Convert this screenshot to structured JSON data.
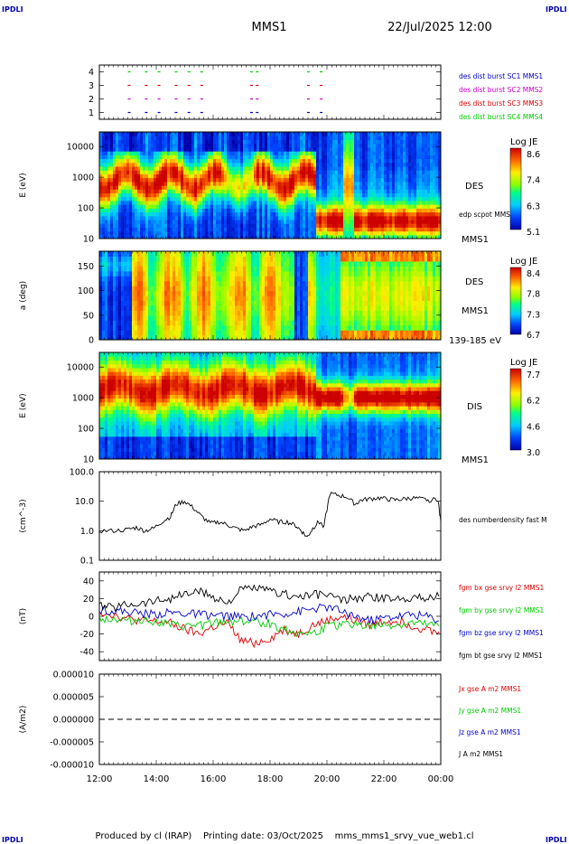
{
  "corner_left_top": "IPDLI",
  "corner_right_top": "IPDLI",
  "corner_left_bottom": "IPDLI",
  "corner_right_bottom": "IPDLI",
  "title": "MMS1",
  "date_label": "22/Jul/2025 12:00",
  "footer": "Produced by cl (IRAP)    Printing date: 03/Oct/2025    mms_mms1_srvy_vue_web1.cl",
  "time_axis": {
    "ticks": [
      "12:00",
      "14:00",
      "16:00",
      "18:00",
      "20:00",
      "22:00",
      "00:00"
    ],
    "start_hour": 12,
    "end_hour": 24
  },
  "colors": {
    "blue": "#0000cc",
    "magenta": "#cc00cc",
    "red": "#dd0000",
    "green": "#00cc00",
    "black": "#000000"
  },
  "chart_data": [
    {
      "type": "scatter",
      "panel": "burst",
      "y_ticks": [
        "1",
        "2",
        "3",
        "4"
      ],
      "ylim": [
        0.5,
        4.5
      ],
      "legend": [
        {
          "name": "des dist burst SC1 MMS1",
          "color": "#0000cc"
        },
        {
          "name": "des dist burst SC2 MMS2",
          "color": "#cc00cc"
        },
        {
          "name": "des dist burst SC3 MMS3",
          "color": "#dd0000"
        },
        {
          "name": "des dist burst SC4 MMS4",
          "color": "#00cc00"
        }
      ],
      "intervals_hours": [
        13.0,
        13.6,
        14.05,
        14.65,
        15.1,
        15.55,
        17.3,
        17.5,
        19.3,
        19.75
      ]
    },
    {
      "type": "heatmap",
      "panel": "des_energy",
      "ylabel": "E (eV)",
      "y_ticks": [
        "10",
        "100",
        "1000",
        "10000"
      ],
      "ylim_log": [
        10,
        30000
      ],
      "side_label": "DES",
      "sub_label": "edp scpot MMS1",
      "bottom_label": "MMS1",
      "colorbar": {
        "title": "Log JE",
        "ticks": [
          "8.6",
          "7.4",
          "6.3",
          "5.1"
        ]
      }
    },
    {
      "type": "heatmap",
      "panel": "des_pitch",
      "ylabel": "a (deg)",
      "y_ticks": [
        "0",
        "50",
        "100",
        "150"
      ],
      "ylim": [
        0,
        180
      ],
      "side_label": "DES",
      "bottom_label": "MMS1",
      "range_label": "139-185 eV",
      "colorbar": {
        "title": "Log JE",
        "ticks": [
          "8.4",
          "7.8",
          "7.3",
          "6.7"
        ]
      }
    },
    {
      "type": "heatmap",
      "panel": "dis_energy",
      "ylabel": "E (eV)",
      "y_ticks": [
        "10",
        "100",
        "1000",
        "10000"
      ],
      "ylim_log": [
        10,
        30000
      ],
      "side_label": "DIS",
      "bottom_label": "MMS1",
      "colorbar": {
        "title": "Log JE",
        "ticks": [
          "7.7",
          "6.2",
          "4.6",
          "3.0"
        ]
      }
    },
    {
      "type": "line",
      "panel": "density",
      "ylabel": "(cm^-3)",
      "y_ticks": [
        "0.1",
        "1.0",
        "10.0",
        "100.0"
      ],
      "ylim_log": [
        0.1,
        100
      ],
      "legend": [
        {
          "name": "des numberdensity fast M",
          "color": "#000000"
        }
      ],
      "x_hours": [
        12.0,
        12.5,
        13.0,
        13.3,
        13.6,
        13.9,
        14.2,
        14.5,
        14.7,
        15.0,
        15.3,
        15.6,
        15.9,
        16.2,
        16.5,
        16.8,
        17.1,
        17.4,
        17.7,
        18.0,
        18.3,
        18.6,
        18.9,
        19.1,
        19.3,
        19.5,
        19.7,
        19.9,
        20.1,
        20.4,
        20.7,
        21.0,
        21.2,
        21.5,
        21.8,
        22.1,
        22.4,
        22.7,
        23.0,
        23.3,
        23.6,
        23.9,
        24.0
      ],
      "values": [
        1.0,
        1.0,
        1.1,
        1.3,
        1.0,
        1.2,
        2.0,
        3.0,
        8.0,
        10.0,
        6.0,
        3.0,
        1.8,
        2.0,
        1.6,
        1.2,
        1.0,
        1.4,
        1.6,
        2.5,
        2.0,
        2.0,
        1.5,
        1.0,
        0.6,
        1.2,
        2.0,
        1.5,
        18.0,
        16.0,
        14.0,
        8.0,
        11.0,
        12.0,
        13.0,
        12.0,
        11.0,
        12.0,
        13.0,
        12.0,
        11.0,
        12.0,
        2.0
      ]
    },
    {
      "type": "line",
      "panel": "fgm",
      "ylabel": "(nT)",
      "y_ticks": [
        "-40",
        "-20",
        "0",
        "20",
        "40"
      ],
      "ylim": [
        -50,
        50
      ],
      "x_hours": [
        12.0,
        12.5,
        13.0,
        13.5,
        14.0,
        14.5,
        15.0,
        15.5,
        16.0,
        16.5,
        17.0,
        17.5,
        18.0,
        18.5,
        19.0,
        19.5,
        20.0,
        20.5,
        21.0,
        21.5,
        22.0,
        22.5,
        23.0,
        23.5,
        24.0
      ],
      "series": [
        {
          "name": "fgm bx gse srvy l2 MMS1",
          "color": "#dd0000",
          "values": [
            5,
            2,
            -3,
            -5,
            -6,
            -8,
            -15,
            -20,
            -12,
            -8,
            -28,
            -30,
            -25,
            -15,
            -20,
            -10,
            -5,
            0,
            -5,
            -10,
            -5,
            -5,
            -10,
            -15,
            -20
          ]
        },
        {
          "name": "fgm by gse srvy l2 MMS1",
          "color": "#00cc00",
          "values": [
            -2,
            -3,
            -5,
            -4,
            -6,
            -10,
            -12,
            -10,
            -8,
            -6,
            -5,
            -6,
            -8,
            -15,
            -18,
            -20,
            -12,
            -10,
            -8,
            -12,
            -10,
            -10,
            -8,
            -10,
            -12
          ]
        },
        {
          "name": "fgm bz gse srvy l2 MMS1",
          "color": "#0000cc",
          "values": [
            8,
            6,
            5,
            3,
            2,
            4,
            3,
            2,
            1,
            0,
            -1,
            0,
            2,
            3,
            5,
            8,
            10,
            6,
            0,
            -5,
            -2,
            0,
            2,
            0,
            -5
          ]
        },
        {
          "name": "fgm bt gse srvy l2 MMS1",
          "color": "#000000",
          "values": [
            12,
            10,
            14,
            15,
            18,
            20,
            25,
            28,
            22,
            15,
            30,
            32,
            28,
            25,
            22,
            24,
            25,
            18,
            20,
            22,
            20,
            20,
            22,
            20,
            25
          ]
        }
      ]
    },
    {
      "type": "line",
      "panel": "current",
      "ylabel": "(A/m2)",
      "y_ticks": [
        "-0.000010",
        "-0.000005",
        "0.000000",
        "0.000005",
        "0.000010"
      ],
      "ylim": [
        -1e-05,
        1e-05
      ],
      "series": [
        {
          "name": "Jx gse A m2 MMS1",
          "color": "#dd0000"
        },
        {
          "name": "Jy gse A m2 MMS1",
          "color": "#00cc00"
        },
        {
          "name": "Jz gse A m2 MMS1",
          "color": "#0000cc"
        },
        {
          "name": "J A m2 MMS1",
          "color": "#000000"
        }
      ]
    }
  ]
}
